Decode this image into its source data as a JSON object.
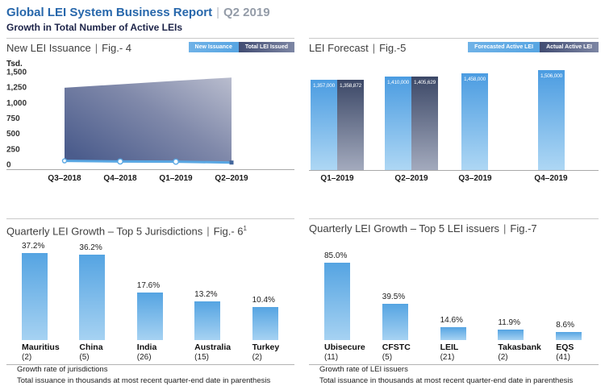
{
  "header": {
    "title": "Global LEI System Business Report",
    "separator": "|",
    "period": "Q2 2019",
    "subtitle": "Growth in Total Number of Active LEIs"
  },
  "colors": {
    "title_blue": "#2767ab",
    "period_gray": "#949ca8",
    "subtitle_navy": "#1d2449",
    "light_blue": "#57a5e2",
    "light_blue_fade": "#aed7f4",
    "dark_slate": "#3c4867",
    "dark_slate_fade": "#a3aabd",
    "area_gradient_dark": "#4b5c8c",
    "area_gradient_light": "#b6bacc",
    "line_blue": "#59a7e3"
  },
  "chart_data": [
    {
      "id": "fig4",
      "type": "area",
      "title": "New LEI Issuance",
      "fig": "Fig.- 4",
      "legend": [
        "New Issuance",
        "Total LEI Issued"
      ],
      "legend_position": "top-right",
      "y_axis_unit": "Tsd.",
      "ylim": [
        0,
        1500
      ],
      "y_tick_labels": [
        "1,500",
        "1,250",
        "1,000",
        "750",
        "500",
        "250",
        "0"
      ],
      "categories": [
        "Q3–2018",
        "Q4–2018",
        "Q1–2019",
        "Q2–2019"
      ],
      "series": [
        {
          "name": "Total LEI Issued",
          "values": [
            1240,
            1297,
            1352,
            1406
          ]
        },
        {
          "name": "New Issuance",
          "values": [
            58,
            47,
            44,
            30
          ]
        }
      ]
    },
    {
      "id": "fig5",
      "type": "bar",
      "title": "LEI Forecast",
      "fig": "Fig.-5",
      "legend": [
        "Forecasted Active LEI",
        "Actual Active LEI"
      ],
      "legend_position": "top-right",
      "categories": [
        "Q1–2019",
        "Q2–2019",
        "Q3–2019",
        "Q4–2019"
      ],
      "series": [
        {
          "name": "Forecasted Active LEI",
          "values": [
            1357000,
            1410000,
            1458000,
            1506000
          ],
          "labels": [
            "1,357,000",
            "1,410,000",
            "1,458,000",
            "1,506,000"
          ]
        },
        {
          "name": "Actual Active LEI",
          "values": [
            1358872,
            1405629,
            null,
            null
          ],
          "labels": [
            "1,358,872",
            "1,405,629",
            null,
            null
          ]
        }
      ]
    },
    {
      "id": "fig6",
      "type": "bar",
      "title": "Quarterly LEI Growth – Top 5 Jurisdictions",
      "fig": "Fig.- 6",
      "fig_sup": "1",
      "bars": [
        {
          "label": "Mauritius",
          "count": "(2)",
          "value": 37.2,
          "value_label": "37.2%"
        },
        {
          "label": "China",
          "count": "(5)",
          "value": 36.2,
          "value_label": "36.2%"
        },
        {
          "label": "India",
          "count": "(26)",
          "value": 17.6,
          "value_label": "17.6%"
        },
        {
          "label": "Australia",
          "count": "(15)",
          "value": 13.2,
          "value_label": "13.2%"
        },
        {
          "label": "Turkey",
          "count": "(2)",
          "value": 10.4,
          "value_label": "10.4%"
        }
      ],
      "footnotes": [
        "Growth rate of jurisdictions",
        "Total issuance in thousands at most recent quarter-end date in parenthesis"
      ]
    },
    {
      "id": "fig7",
      "type": "bar",
      "title": "Quarterly LEI Growth – Top 5 LEI issuers",
      "fig": "Fig.-7",
      "fig_sup": "",
      "bars": [
        {
          "label": "Ubisecure",
          "count": "(11)",
          "value": 85.0,
          "value_label": "85.0%"
        },
        {
          "label": "CFSTC",
          "count": "(5)",
          "value": 39.5,
          "value_label": "39.5%"
        },
        {
          "label": "LEIL",
          "count": "(21)",
          "value": 14.6,
          "value_label": "14.6%"
        },
        {
          "label": "Takasbank",
          "count": "(2)",
          "value": 11.9,
          "value_label": "11.9%"
        },
        {
          "label": "EQS",
          "count": "(41)",
          "value": 8.6,
          "value_label": "8.6%"
        }
      ],
      "footnotes": [
        "Growth rate of LEI issuers",
        "Total issuance in thousands at most recent quarter-end date in parenthesis"
      ]
    }
  ]
}
